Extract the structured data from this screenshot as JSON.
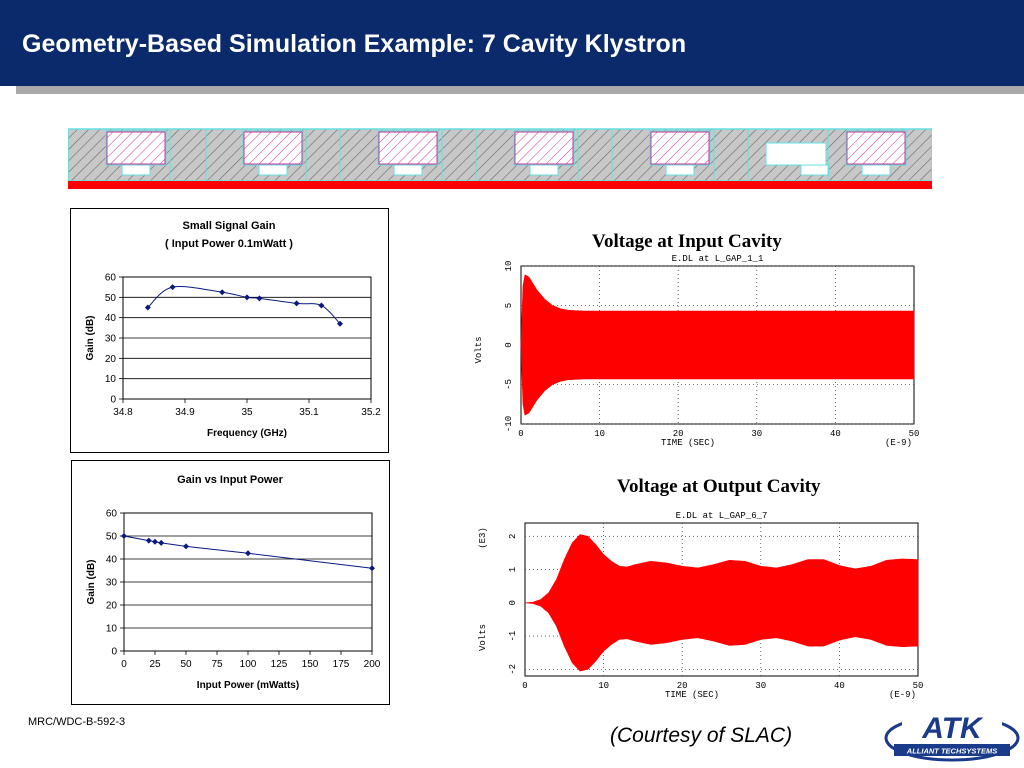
{
  "slide": {
    "title": "Geometry-Based Simulation Example:  7 Cavity Klystron",
    "footer_code": "MRC/WDC-B-592-3",
    "courtesy": "(Courtesy of SLAC)",
    "logo_main": "ATK",
    "logo_sub": "ALLIANT TECHSYSTEMS",
    "colors": {
      "banner": "#0a2a6b",
      "signal": "#ff0000",
      "series": "#0a1a80",
      "geometry_outline": "#66e0e0",
      "cavity_hatch": "#cc3399"
    }
  },
  "geometry": {
    "icon": "klystron-geometry-diagram",
    "cavity_count": 7
  },
  "chart_data": [
    {
      "type": "line",
      "title": "Small Signal Gain",
      "subtitle": "( Input Power  0.1mWatt )",
      "xlabel": "Frequency (GHz)",
      "ylabel": "Gain (dB)",
      "xlim": [
        34.8,
        35.2
      ],
      "ylim": [
        0,
        60
      ],
      "xticks": [
        "34.8",
        "34.9",
        "35",
        "35.1",
        "35.2"
      ],
      "yticks": [
        "0",
        "10",
        "20",
        "30",
        "40",
        "50",
        "60"
      ],
      "x": [
        34.84,
        34.88,
        34.96,
        35.0,
        35.02,
        35.08,
        35.12,
        35.15
      ],
      "y": [
        45,
        55,
        52.5,
        50,
        49.5,
        47,
        46,
        37
      ],
      "grid": "horizontal"
    },
    {
      "type": "line",
      "title": "Gain vs Input Power",
      "xlabel": "Input Power (mWatts)",
      "ylabel": "Gain (dB)",
      "xlim": [
        0,
        200
      ],
      "ylim": [
        0,
        60
      ],
      "xticks": [
        "0",
        "25",
        "50",
        "75",
        "100",
        "125",
        "150",
        "175",
        "200"
      ],
      "yticks": [
        "0",
        "10",
        "20",
        "30",
        "40",
        "50",
        "60"
      ],
      "x": [
        0,
        20,
        25,
        30,
        50,
        100,
        200
      ],
      "y": [
        50,
        48,
        47.5,
        47,
        45.5,
        42.5,
        36
      ],
      "grid": "horizontal"
    },
    {
      "type": "area",
      "heading": "Voltage at Input Cavity",
      "title": "E.DL at L_GAP_1_1",
      "xlabel": "TIME  (SEC)",
      "xunit": "(E-9)",
      "ylabel": "Volts",
      "xlim": [
        0,
        50
      ],
      "ylim": [
        -10,
        10
      ],
      "xticks": [
        "0",
        "10",
        "20",
        "30",
        "40",
        "50"
      ],
      "yticks": [
        "-10",
        "-5",
        "0",
        "5",
        "10"
      ],
      "envelope_time": [
        0,
        0.3,
        1,
        2,
        3,
        4,
        5,
        6,
        8,
        50
      ],
      "envelope_amplitude": [
        0,
        9,
        8.6,
        7,
        5.8,
        5,
        4.6,
        4.4,
        4.3,
        4.3
      ],
      "grid": "dotted"
    },
    {
      "type": "area",
      "heading": "Voltage at Output Cavity",
      "title": "E.DL at L_GAP_6_7",
      "xlabel": "TIME  (SEC)",
      "xunit": "(E-9)",
      "ylabel": "Volts",
      "yunit": "(E3)",
      "xlim": [
        0,
        50
      ],
      "ylim": [
        -2.2,
        2.4
      ],
      "xticks": [
        "0",
        "10",
        "20",
        "30",
        "40",
        "50"
      ],
      "yticks": [
        "-2",
        "-1",
        "0",
        "1",
        "2"
      ],
      "envelope_time": [
        0,
        1,
        2,
        3,
        4,
        5,
        6,
        7,
        8,
        9,
        10,
        11,
        12,
        13,
        14,
        16,
        18,
        20,
        22,
        24,
        26,
        28,
        30,
        32,
        34,
        36,
        38,
        40,
        42,
        44,
        46,
        48,
        50
      ],
      "envelope_amplitude": [
        0,
        0.02,
        0.1,
        0.3,
        0.7,
        1.3,
        1.8,
        2.05,
        2.0,
        1.75,
        1.45,
        1.25,
        1.1,
        1.08,
        1.15,
        1.25,
        1.2,
        1.1,
        1.05,
        1.15,
        1.28,
        1.25,
        1.1,
        1.05,
        1.15,
        1.3,
        1.3,
        1.12,
        1.02,
        1.1,
        1.28,
        1.32,
        1.3
      ],
      "grid": "dotted"
    }
  ]
}
